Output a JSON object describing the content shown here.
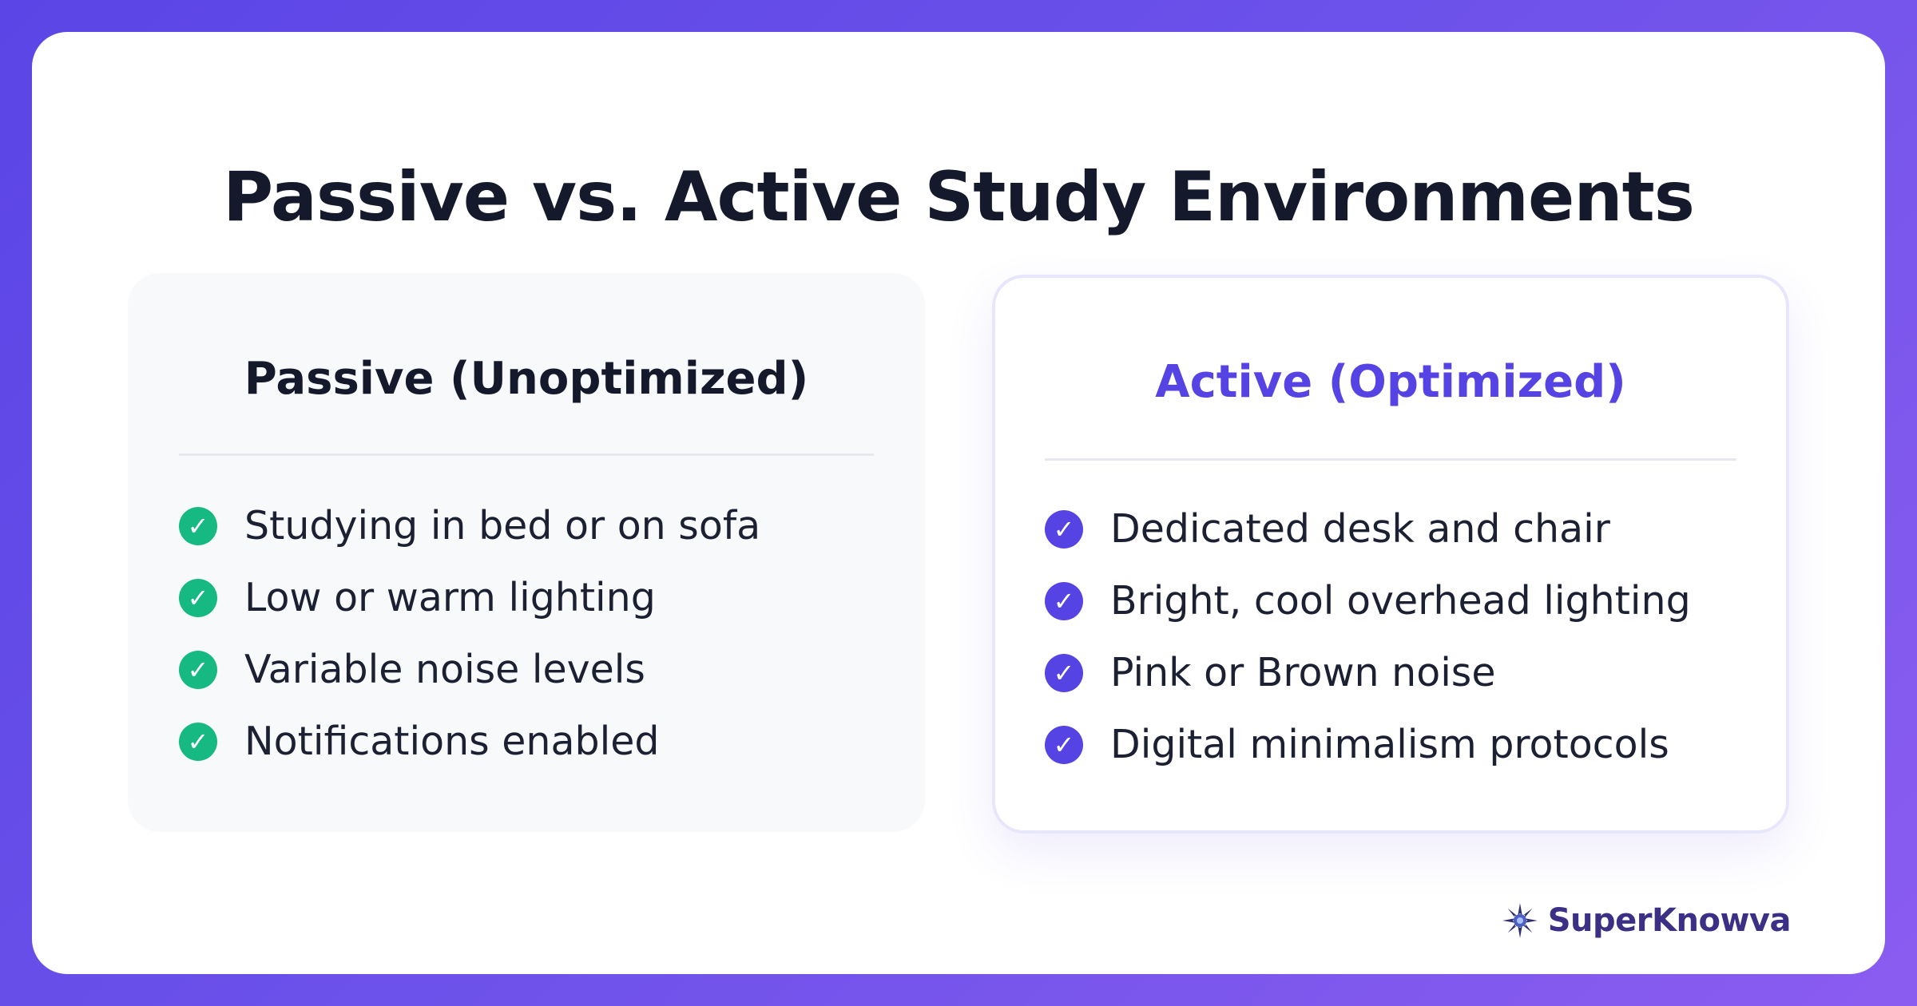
{
  "title": "Passive vs. Active Study Environments",
  "passive": {
    "heading": "Passive (Unoptimized)",
    "items": [
      {
        "label": "Studying in bed or on sofa",
        "icon": "check-circle-icon"
      },
      {
        "label": "Low or warm lighting",
        "icon": "check-circle-icon"
      },
      {
        "label": "Variable noise levels",
        "icon": "check-circle-icon"
      },
      {
        "label": "Notifications enabled",
        "icon": "check-circle-icon"
      }
    ],
    "check_color": "#16b981"
  },
  "active": {
    "heading": "Active (Optimized)",
    "heading_color": "#5543e3",
    "items": [
      {
        "label": "Dedicated desk and chair",
        "icon": "check-circle-icon"
      },
      {
        "label": "Bright, cool overhead lighting",
        "icon": "check-circle-icon"
      },
      {
        "label": "Pink or Brown noise",
        "icon": "check-circle-icon"
      },
      {
        "label": "Digital minimalism protocols",
        "icon": "check-circle-icon"
      }
    ],
    "check_color": "#5543e3"
  },
  "check_glyph": "✓",
  "brand": {
    "name": "SuperKnowva",
    "icon": "starburst-logo-icon"
  },
  "colors": {
    "background_start": "#5b45e6",
    "background_end": "#8b5cf0",
    "card": "#ffffff",
    "title": "#141a2c"
  }
}
